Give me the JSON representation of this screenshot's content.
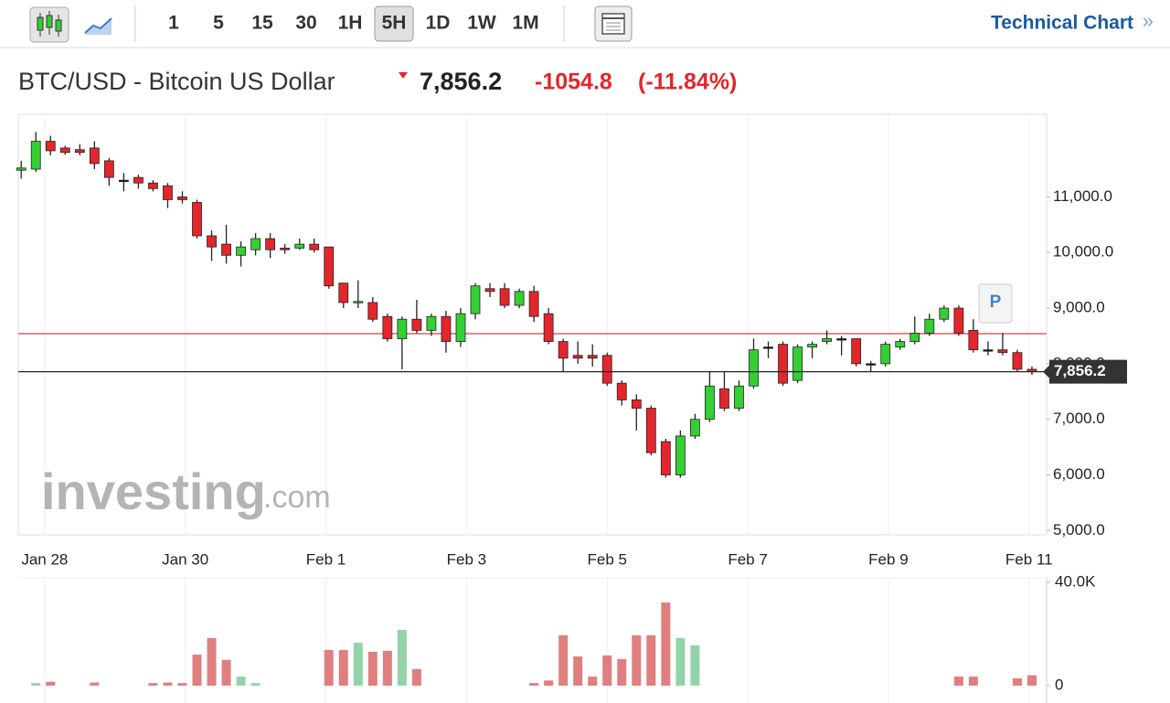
{
  "toolbar": {
    "intervals": [
      "1",
      "5",
      "15",
      "30",
      "1H",
      "5H",
      "1D",
      "1W",
      "1M"
    ],
    "active": "5H",
    "link": "Technical Chart",
    "link_arrow": "»"
  },
  "header": {
    "symbol": "BTC/USD - Bitcoin US Dollar",
    "price": "7,856.2",
    "change": "-1054.8",
    "change_percent": "(-11.84%)"
  },
  "watermark": {
    "brand": "investing",
    "suffix": ".com"
  },
  "marker": "P",
  "chart_data": {
    "type": "candlestick",
    "x": [
      -8,
      -3,
      2,
      7,
      12,
      17,
      22,
      27,
      32,
      37,
      42,
      47,
      52,
      57,
      62,
      67,
      72,
      77,
      82,
      87,
      92,
      97,
      102,
      107,
      112,
      117,
      122,
      127,
      132,
      137,
      142,
      147,
      152,
      157,
      162,
      167,
      172,
      177,
      182,
      187,
      192,
      197,
      202,
      207,
      212,
      217,
      222,
      227,
      232,
      237,
      242,
      247,
      252,
      257,
      262,
      267,
      272,
      277,
      282,
      287,
      292,
      297,
      302,
      307,
      312,
      317,
      322,
      327,
      332,
      337
    ],
    "open": [
      11480,
      11500,
      12000,
      11880,
      11850,
      11880,
      11650,
      11300,
      11350,
      11250,
      11200,
      11000,
      10900,
      10300,
      10150,
      9950,
      10050,
      10250,
      10080,
      10080,
      10150,
      10100,
      9450,
      9100,
      9100,
      8850,
      8450,
      8800,
      8600,
      8850,
      8400,
      8900,
      9350,
      9350,
      9050,
      9300,
      8900,
      8400,
      8150,
      8150,
      8150,
      7650,
      7350,
      7200,
      6600,
      6000,
      6700,
      7000,
      7550,
      7200,
      7600,
      8300,
      8350,
      7700,
      8300,
      8400,
      8450,
      8450,
      8000,
      8000,
      8300,
      8400,
      8550,
      8800,
      9000,
      8600,
      8250,
      8250,
      8200,
      7900
    ],
    "high": [
      11650,
      12170,
      12100,
      11920,
      11950,
      12000,
      11700,
      11430,
      11400,
      11300,
      11250,
      11100,
      10950,
      10400,
      10500,
      10200,
      10350,
      10350,
      10150,
      10250,
      10250,
      10100,
      9450,
      9500,
      9200,
      8900,
      8850,
      9150,
      8900,
      8950,
      9000,
      9450,
      9450,
      9450,
      9350,
      9400,
      9000,
      8450,
      8400,
      8350,
      8200,
      7700,
      7450,
      7250,
      6650,
      6800,
      7100,
      7850,
      7850,
      7700,
      8450,
      8400,
      8400,
      8350,
      8400,
      8600,
      8500,
      8450,
      8050,
      8400,
      8450,
      8850,
      8900,
      9050,
      9050,
      8800,
      8400,
      8550,
      8250,
      7950
    ],
    "low": [
      11330,
      11450,
      11750,
      11760,
      11750,
      11500,
      11200,
      11100,
      11150,
      11100,
      10800,
      10880,
      10250,
      9850,
      9800,
      9750,
      9950,
      9900,
      9980,
      10050,
      10000,
      9350,
      9000,
      9000,
      8750,
      8400,
      7900,
      8550,
      8500,
      8200,
      8300,
      8800,
      9200,
      9000,
      9000,
      8750,
      8350,
      7850,
      8000,
      7950,
      7600,
      7250,
      6800,
      6350,
      5950,
      5950,
      6650,
      6950,
      7150,
      7150,
      7550,
      8100,
      7600,
      7650,
      8100,
      8350,
      8150,
      7950,
      7850,
      7950,
      8250,
      8350,
      8500,
      8750,
      8500,
      8200,
      8150,
      8150,
      7850,
      7800
    ],
    "close": [
      11520,
      12000,
      11830,
      11800,
      11800,
      11600,
      11350,
      11300,
      11250,
      11150,
      10950,
      10950,
      10300,
      10100,
      9950,
      10100,
      10250,
      10050,
      10050,
      10150,
      10050,
      9400,
      9100,
      9120,
      8800,
      8450,
      8800,
      8600,
      8850,
      8400,
      8900,
      9400,
      9300,
      9050,
      9300,
      8850,
      8400,
      8100,
      8100,
      8100,
      7650,
      7350,
      7200,
      6400,
      6000,
      6700,
      7000,
      7600,
      7200,
      7600,
      8250,
      8300,
      7650,
      8300,
      8350,
      8450,
      8450,
      8000,
      8000,
      8350,
      8400,
      8550,
      8800,
      9000,
      8550,
      8250,
      8250,
      8200,
      7900,
      7856.2
    ],
    "volume": [
      0,
      1000,
      1500,
      0,
      0,
      1200,
      0,
      0,
      0,
      1000,
      1200,
      1000,
      12000,
      18400,
      10000,
      3500,
      1000,
      0,
      0,
      0,
      0,
      13800,
      13800,
      16600,
      13100,
      13500,
      21600,
      6400,
      0,
      0,
      0,
      0,
      0,
      0,
      0,
      1000,
      2000,
      19500,
      11300,
      3500,
      11700,
      10300,
      19500,
      19500,
      32200,
      18400,
      15600,
      0,
      0,
      0,
      0,
      0,
      0,
      0,
      0,
      0,
      0,
      0,
      0,
      0,
      0,
      0,
      0,
      0,
      3500,
      3500,
      0,
      0,
      2800,
      4000
    ],
    "up_color": "#33d033",
    "down_color": "#e3262c",
    "flat_color": "#111111",
    "volume_up_color": "#93d3aa",
    "volume_down_color": "#e07f7f",
    "xlim": [
      -9,
      342
    ],
    "xticks": [
      {
        "value": 0,
        "label": "Jan 28"
      },
      {
        "value": 48,
        "label": "Jan 30"
      },
      {
        "value": 96,
        "label": "Feb 1"
      },
      {
        "value": 144,
        "label": "Feb 3"
      },
      {
        "value": 192,
        "label": "Feb 5"
      },
      {
        "value": 240,
        "label": "Feb 7"
      },
      {
        "value": 288,
        "label": "Feb 9"
      },
      {
        "value": 336,
        "label": "Feb 11"
      }
    ],
    "ylim": [
      4940,
      12470
    ],
    "yticks": [
      {
        "value": 5000,
        "label": "5,000.0"
      },
      {
        "value": 6000,
        "label": "6,000.0"
      },
      {
        "value": 7000,
        "label": "7,000.0"
      },
      {
        "value": 8000,
        "label": "8,000.0"
      },
      {
        "value": 9000,
        "label": "9,000.0"
      },
      {
        "value": 10000,
        "label": "10,000.0"
      },
      {
        "value": 11000,
        "label": "11,000.0"
      }
    ],
    "volume_ylim": [
      0,
      40000
    ],
    "volume_yticks": [
      0,
      {
        "value": 40000,
        "label": "40.0K"
      }
    ],
    "reference_line": {
      "value": 8540,
      "color": "#d94040"
    },
    "last_price": {
      "value": 7856.2,
      "label": "7,856.2"
    },
    "grid": true
  }
}
